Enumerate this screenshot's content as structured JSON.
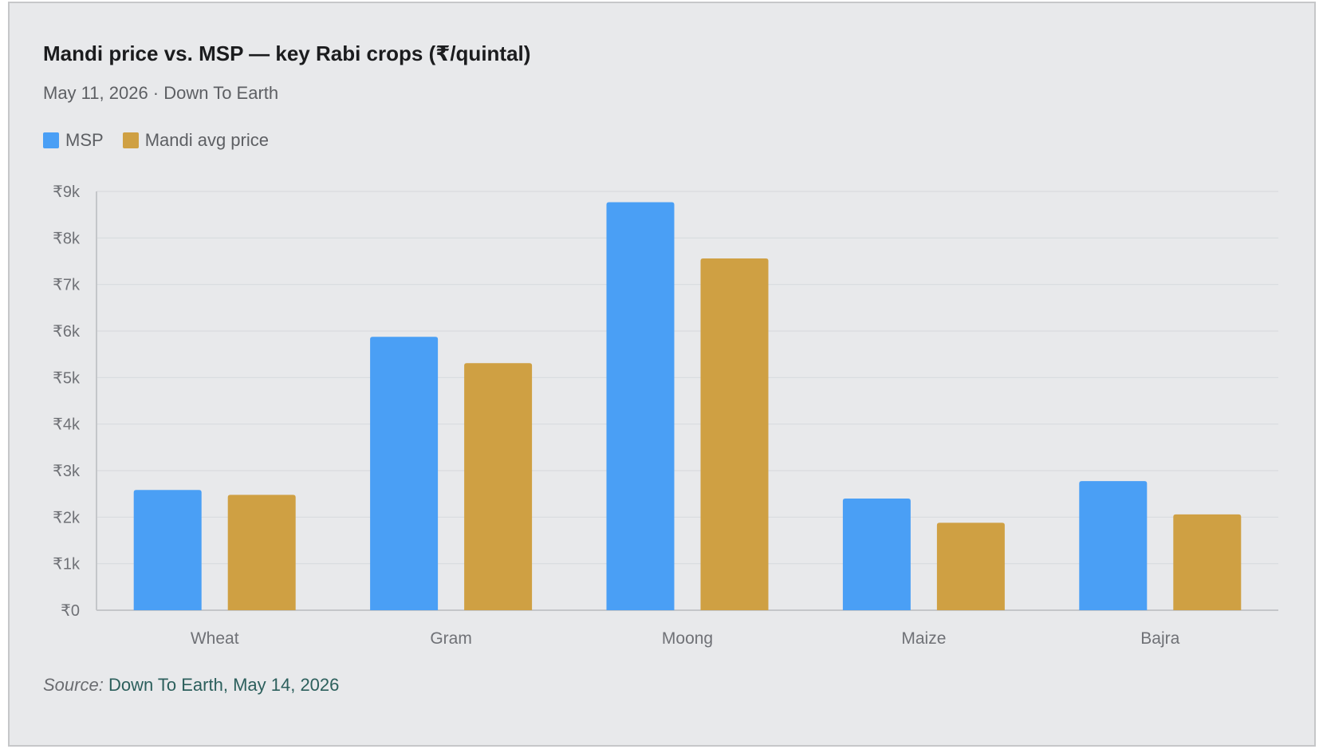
{
  "header": {
    "title": "Mandi price vs. MSP — key Rabi crops (₹/quintal)",
    "subtitle": "May 11, 2026 · Down To Earth"
  },
  "legend": [
    {
      "label": "MSP",
      "color": "#4a9ff5"
    },
    {
      "label": "Mandi avg price",
      "color": "#cfa043"
    }
  ],
  "chart_data": {
    "type": "bar",
    "categories": [
      "Wheat",
      "Gram",
      "Moong",
      "Maize",
      "Bajra"
    ],
    "series": [
      {
        "name": "MSP",
        "color": "#4a9ff5",
        "values": [
          2585,
          5875,
          8768,
          2400,
          2775
        ]
      },
      {
        "name": "Mandi avg price",
        "color": "#cfa043",
        "values": [
          2480,
          5310,
          7560,
          1880,
          2060
        ]
      }
    ],
    "ylim": [
      0,
      9000
    ],
    "yticks": [
      0,
      1000,
      2000,
      3000,
      4000,
      5000,
      6000,
      7000,
      8000,
      9000
    ],
    "ytick_labels": [
      "₹0",
      "₹1k",
      "₹2k",
      "₹3k",
      "₹4k",
      "₹5k",
      "₹6k",
      "₹7k",
      "₹8k",
      "₹9k"
    ],
    "grid": true,
    "legend_position": "top-left"
  },
  "footer": {
    "source_label": "Source:",
    "source_text": "Down To Earth, May 14, 2026"
  }
}
